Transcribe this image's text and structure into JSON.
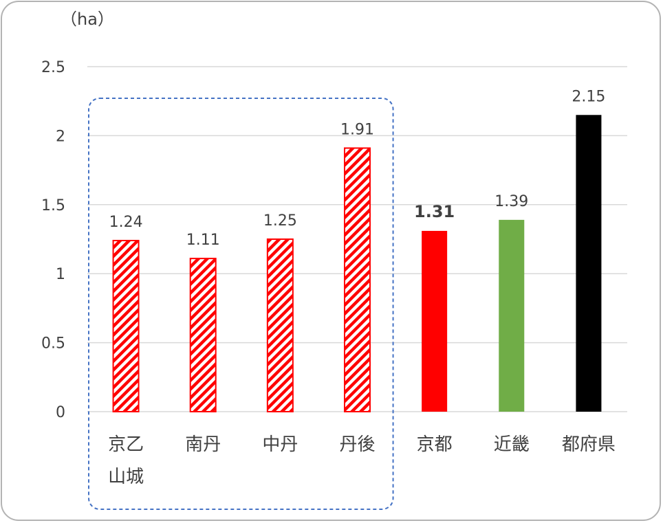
{
  "chart_data": {
    "type": "bar",
    "unit_label": "（ha）",
    "categories": [
      {
        "label_lines": [
          "京乙",
          "山城"
        ],
        "value": 1.24,
        "style": "hatched",
        "color": "#ff0000",
        "bold_label": false
      },
      {
        "label_lines": [
          "南丹"
        ],
        "value": 1.11,
        "style": "hatched",
        "color": "#ff0000",
        "bold_label": false
      },
      {
        "label_lines": [
          "中丹"
        ],
        "value": 1.25,
        "style": "hatched",
        "color": "#ff0000",
        "bold_label": false
      },
      {
        "label_lines": [
          "丹後"
        ],
        "value": 1.91,
        "style": "hatched",
        "color": "#ff0000",
        "bold_label": false
      },
      {
        "label_lines": [
          "京都"
        ],
        "value": 1.31,
        "style": "solid",
        "color": "#ff0000",
        "bold_label": true
      },
      {
        "label_lines": [
          "近畿"
        ],
        "value": 1.39,
        "style": "solid",
        "color": "#70ad47",
        "bold_label": false
      },
      {
        "label_lines": [
          "都府県"
        ],
        "value": 2.15,
        "style": "solid",
        "color": "#000000",
        "bold_label": false
      }
    ],
    "yticks": [
      "0",
      "0.5",
      "1",
      "1.5",
      "2",
      "2.5"
    ],
    "ylim": [
      0,
      2.5
    ],
    "grid": true,
    "group_box_categories": [
      0,
      3
    ],
    "group_box_color": "#4472c4"
  }
}
